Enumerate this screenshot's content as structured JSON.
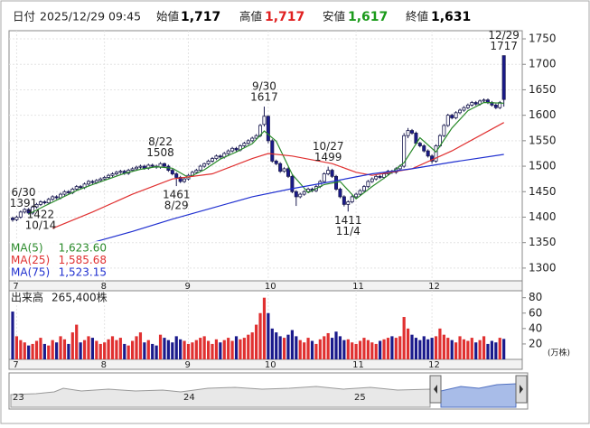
{
  "header": {
    "date_label": "日付",
    "datetime": "2025/12/29 09:45",
    "fields": [
      {
        "name": "始値",
        "value": "1,717",
        "color": "#000000"
      },
      {
        "name": "高値",
        "value": "1,717",
        "color": "#e02020"
      },
      {
        "name": "安値",
        "value": "1,617",
        "color": "#1a9a1a"
      },
      {
        "name": "終値",
        "value": "1,631",
        "color": "#000000"
      }
    ]
  },
  "chart_data": {
    "type": "candlestick",
    "up_color": "#ffffff",
    "down_color": "#1a1a8c",
    "edge_color": "#1a1a50",
    "ylim": [
      1275,
      1766
    ],
    "yticks": [
      1300,
      1350,
      1400,
      1450,
      1500,
      1550,
      1600,
      1650,
      1700,
      1750
    ],
    "grid": true,
    "xticks": [
      {
        "value": 1,
        "label": "7"
      },
      {
        "value": 23,
        "label": "8"
      },
      {
        "value": 44,
        "label": "9"
      },
      {
        "value": 64,
        "label": "10"
      },
      {
        "value": 86,
        "label": "11"
      },
      {
        "value": 105,
        "label": "12"
      }
    ],
    "candles": [
      [
        1398,
        1401,
        1391,
        1395
      ],
      [
        1395,
        1403,
        1392,
        1400
      ],
      [
        1400,
        1413,
        1397,
        1410
      ],
      [
        1410,
        1418,
        1407,
        1415
      ],
      [
        1415,
        1418,
        1405,
        1408
      ],
      [
        1408,
        1423,
        1405,
        1420
      ],
      [
        1420,
        1428,
        1417,
        1425
      ],
      [
        1425,
        1433,
        1422,
        1430
      ],
      [
        1430,
        1433,
        1425,
        1428
      ],
      [
        1428,
        1438,
        1425,
        1435
      ],
      [
        1435,
        1443,
        1432,
        1440
      ],
      [
        1440,
        1443,
        1435,
        1438
      ],
      [
        1438,
        1448,
        1435,
        1445
      ],
      [
        1445,
        1453,
        1442,
        1450
      ],
      [
        1450,
        1453,
        1445,
        1448
      ],
      [
        1448,
        1458,
        1445,
        1455
      ],
      [
        1455,
        1463,
        1452,
        1460
      ],
      [
        1460,
        1463,
        1455,
        1458
      ],
      [
        1458,
        1468,
        1455,
        1465
      ],
      [
        1465,
        1473,
        1462,
        1470
      ],
      [
        1470,
        1473,
        1465,
        1468
      ],
      [
        1468,
        1475,
        1465,
        1472
      ],
      [
        1472,
        1478,
        1469,
        1475
      ],
      [
        1475,
        1481,
        1472,
        1478
      ],
      [
        1478,
        1485,
        1475,
        1482
      ],
      [
        1482,
        1488,
        1479,
        1485
      ],
      [
        1485,
        1491,
        1482,
        1488
      ],
      [
        1488,
        1493,
        1485,
        1490
      ],
      [
        1490,
        1493,
        1483,
        1486
      ],
      [
        1486,
        1495,
        1483,
        1492
      ],
      [
        1492,
        1498,
        1489,
        1495
      ],
      [
        1495,
        1501,
        1492,
        1498
      ],
      [
        1498,
        1503,
        1495,
        1500
      ],
      [
        1500,
        1503,
        1493,
        1496
      ],
      [
        1496,
        1505,
        1493,
        1502
      ],
      [
        1502,
        1505,
        1497,
        1500
      ],
      [
        1500,
        1503,
        1495,
        1498
      ],
      [
        1498,
        1508,
        1495,
        1505
      ],
      [
        1505,
        1507,
        1497,
        1500
      ],
      [
        1500,
        1503,
        1489,
        1492
      ],
      [
        1492,
        1495,
        1482,
        1485
      ],
      [
        1485,
        1488,
        1461,
        1478
      ],
      [
        1478,
        1481,
        1467,
        1470
      ],
      [
        1470,
        1478,
        1467,
        1475
      ],
      [
        1475,
        1485,
        1472,
        1482
      ],
      [
        1482,
        1491,
        1479,
        1488
      ],
      [
        1488,
        1495,
        1485,
        1492
      ],
      [
        1492,
        1503,
        1489,
        1500
      ],
      [
        1500,
        1507,
        1497,
        1505
      ],
      [
        1505,
        1513,
        1502,
        1510
      ],
      [
        1510,
        1518,
        1507,
        1515
      ],
      [
        1515,
        1523,
        1512,
        1520
      ],
      [
        1520,
        1523,
        1515,
        1518
      ],
      [
        1518,
        1528,
        1515,
        1525
      ],
      [
        1525,
        1533,
        1522,
        1530
      ],
      [
        1530,
        1538,
        1527,
        1535
      ],
      [
        1535,
        1538,
        1529,
        1532
      ],
      [
        1532,
        1543,
        1529,
        1540
      ],
      [
        1540,
        1548,
        1537,
        1545
      ],
      [
        1545,
        1553,
        1542,
        1550
      ],
      [
        1550,
        1558,
        1547,
        1555
      ],
      [
        1555,
        1563,
        1552,
        1560
      ],
      [
        1560,
        1583,
        1557,
        1580
      ],
      [
        1582,
        1617,
        1578,
        1598
      ],
      [
        1598,
        1600,
        1545,
        1550
      ],
      [
        1550,
        1553,
        1507,
        1510
      ],
      [
        1510,
        1513,
        1502,
        1505
      ],
      [
        1505,
        1508,
        1487,
        1490
      ],
      [
        1490,
        1498,
        1487,
        1495
      ],
      [
        1495,
        1498,
        1477,
        1480
      ],
      [
        1480,
        1483,
        1447,
        1450
      ],
      [
        1450,
        1453,
        1422,
        1440
      ],
      [
        1440,
        1448,
        1437,
        1445
      ],
      [
        1445,
        1453,
        1442,
        1450
      ],
      [
        1450,
        1458,
        1447,
        1455
      ],
      [
        1455,
        1458,
        1449,
        1452
      ],
      [
        1452,
        1463,
        1449,
        1460
      ],
      [
        1460,
        1473,
        1457,
        1470
      ],
      [
        1470,
        1488,
        1467,
        1485
      ],
      [
        1485,
        1499,
        1482,
        1492
      ],
      [
        1492,
        1495,
        1477,
        1480
      ],
      [
        1480,
        1483,
        1452,
        1455
      ],
      [
        1455,
        1458,
        1437,
        1440
      ],
      [
        1440,
        1443,
        1421,
        1425
      ],
      [
        1425,
        1433,
        1411,
        1430
      ],
      [
        1430,
        1443,
        1427,
        1440
      ],
      [
        1440,
        1448,
        1437,
        1445
      ],
      [
        1445,
        1455,
        1442,
        1452
      ],
      [
        1452,
        1463,
        1449,
        1460
      ],
      [
        1460,
        1473,
        1457,
        1470
      ],
      [
        1470,
        1478,
        1467,
        1475
      ],
      [
        1475,
        1483,
        1472,
        1480
      ],
      [
        1480,
        1483,
        1475,
        1478
      ],
      [
        1478,
        1488,
        1475,
        1485
      ],
      [
        1485,
        1493,
        1482,
        1490
      ],
      [
        1490,
        1493,
        1485,
        1488
      ],
      [
        1488,
        1498,
        1485,
        1495
      ],
      [
        1495,
        1503,
        1492,
        1500
      ],
      [
        1500,
        1565,
        1497,
        1560
      ],
      [
        1560,
        1575,
        1555,
        1570
      ],
      [
        1570,
        1573,
        1562,
        1565
      ],
      [
        1565,
        1568,
        1542,
        1545
      ],
      [
        1545,
        1548,
        1537,
        1540
      ],
      [
        1540,
        1543,
        1527,
        1530
      ],
      [
        1530,
        1533,
        1517,
        1520
      ],
      [
        1520,
        1523,
        1505,
        1510
      ],
      [
        1510,
        1543,
        1507,
        1540
      ],
      [
        1540,
        1563,
        1537,
        1560
      ],
      [
        1560,
        1583,
        1557,
        1580
      ],
      [
        1580,
        1603,
        1577,
        1600
      ],
      [
        1600,
        1603,
        1592,
        1595
      ],
      [
        1595,
        1608,
        1592,
        1605
      ],
      [
        1605,
        1613,
        1602,
        1610
      ],
      [
        1610,
        1618,
        1607,
        1615
      ],
      [
        1615,
        1623,
        1612,
        1620
      ],
      [
        1620,
        1628,
        1617,
        1625
      ],
      [
        1625,
        1628,
        1619,
        1622
      ],
      [
        1622,
        1631,
        1619,
        1628
      ],
      [
        1628,
        1633,
        1625,
        1630
      ],
      [
        1630,
        1633,
        1622,
        1625
      ],
      [
        1625,
        1628,
        1617,
        1620
      ],
      [
        1620,
        1623,
        1612,
        1615
      ],
      [
        1615,
        1628,
        1612,
        1625
      ],
      [
        1717,
        1717,
        1617,
        1631
      ]
    ],
    "series": [
      {
        "name": "MA(5)",
        "color": "#2a8a2a",
        "last": {
          "value": 1623.6,
          "label": "1,623.60"
        },
        "x": [
          4,
          8,
          12,
          16,
          20,
          24,
          28,
          32,
          36,
          40,
          44,
          48,
          52,
          56,
          60,
          63,
          66,
          70,
          74,
          78,
          82,
          86,
          90,
          94,
          98,
          102,
          106,
          110,
          114,
          118,
          123
        ],
        "values": [
          1406,
          1422,
          1437,
          1452,
          1464,
          1475,
          1486,
          1494,
          1499,
          1496,
          1478,
          1493,
          1514,
          1528,
          1544,
          1569,
          1549,
          1484,
          1448,
          1464,
          1470,
          1436,
          1460,
          1482,
          1507,
          1556,
          1528,
          1575,
          1609,
          1625,
          1623.6
        ]
      },
      {
        "name": "MA(25)",
        "color": "#e03030",
        "last": {
          "value": 1585.68,
          "label": "1,585.68"
        },
        "x": [
          10,
          20,
          30,
          40,
          50,
          60,
          64,
          70,
          80,
          86,
          90,
          100,
          110,
          123
        ],
        "values": [
          1378,
          1410,
          1445,
          1475,
          1485,
          1515,
          1525,
          1520,
          1505,
          1488,
          1482,
          1495,
          1530,
          1585.68
        ]
      },
      {
        "name": "MA(75)",
        "color": "#2030d0",
        "last": {
          "value": 1523.15,
          "label": "1,523.15"
        },
        "x": [
          19,
          30,
          40,
          50,
          60,
          70,
          80,
          90,
          100,
          110,
          123
        ],
        "values": [
          1348,
          1372,
          1396,
          1418,
          1440,
          1456,
          1470,
          1485,
          1495,
          1508,
          1523.15
        ]
      }
    ],
    "annotations": [
      {
        "date": "6/30",
        "value": 1391
      },
      {
        "date": "8/22",
        "value": 1508
      },
      {
        "date": "8/29",
        "value": 1461
      },
      {
        "date": "9/30",
        "value": 1617
      },
      {
        "date": "10/14",
        "value": 1422
      },
      {
        "date": "10/27",
        "value": 1499
      },
      {
        "date": "11/4",
        "value": 1411
      },
      {
        "date": "12/29",
        "value": 1717
      }
    ],
    "volume": {
      "title": "出来高",
      "total": "265,400株",
      "unit": "(万株)",
      "ylim": [
        0,
        89
      ],
      "yticks": [
        20,
        40,
        60,
        80
      ],
      "up_color": "#e03030",
      "down_color": "#1a1a8c",
      "values": [
        62,
        30,
        25,
        22,
        18,
        20,
        24,
        28,
        20,
        18,
        25,
        22,
        30,
        26,
        20,
        35,
        45,
        22,
        25,
        30,
        28,
        24,
        20,
        22,
        26,
        30,
        25,
        28,
        20,
        18,
        24,
        30,
        35,
        22,
        25,
        20,
        18,
        32,
        28,
        25,
        22,
        30,
        26,
        24,
        20,
        22,
        25,
        28,
        30,
        24,
        20,
        26,
        22,
        25,
        28,
        24,
        30,
        26,
        28,
        32,
        35,
        45,
        60,
        80,
        60,
        40,
        35,
        30,
        28,
        32,
        38,
        30,
        25,
        22,
        28,
        24,
        20,
        26,
        30,
        34,
        28,
        36,
        30,
        25,
        26,
        22,
        20,
        24,
        28,
        25,
        22,
        20,
        24,
        26,
        28,
        30,
        28,
        30,
        55,
        40,
        32,
        28,
        25,
        30,
        26,
        28,
        30,
        40,
        32,
        28,
        25,
        22,
        30,
        26,
        24,
        28,
        22,
        25,
        30,
        20,
        24,
        22,
        28,
        26.54
      ]
    },
    "overview_labels": [
      "23",
      "24",
      "25"
    ]
  }
}
